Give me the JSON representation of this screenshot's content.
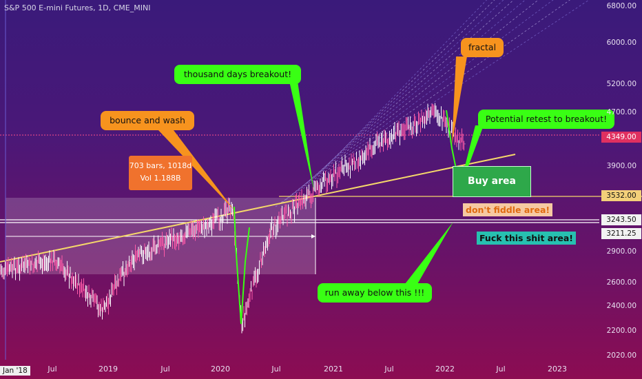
{
  "symbol_title": "S&P 500 E-mini Futures, 1D, CME_MINI",
  "y_axis": {
    "ticks": [
      "6800.00",
      "6000.00",
      "5200.00",
      "4700.00",
      "3900.00",
      "2900.00",
      "2600.00",
      "2400.00",
      "2200.00",
      "2020.00"
    ],
    "tags": {
      "last_price": "4349.00",
      "level_1": "3532.00",
      "level_2": "3243.50",
      "level_3": "3211.25"
    }
  },
  "x_axis": {
    "start_label": "Jan '18",
    "ticks": [
      "Jul",
      "2019",
      "Jul",
      "2020",
      "Jul",
      "2021",
      "Jul",
      "2022",
      "Jul",
      "2023"
    ]
  },
  "measure_box": {
    "line1": "703 bars, 1018d",
    "line2": "Vol 1.188B"
  },
  "annotations": {
    "bounce": "bounce and wash",
    "thousand": "thousand days breakout!",
    "fractal": "fractal",
    "retest": "Potential retest to breakout!",
    "buy_area": "Buy area",
    "fiddle": "don't fiddle area!",
    "fuck": "Fuck this shit area!",
    "runaway": "run away below this !!!"
  },
  "colors": {
    "orange": "#f7931e",
    "green": "#39ff14",
    "trendline": "#f5d86a",
    "red_tag": "#e03060",
    "teal": "#27c0b0"
  },
  "chart_data": {
    "type": "line",
    "title": "S&P 500 E-mini Futures, 1D, CME_MINI",
    "x": [
      "2018-01",
      "2018-07",
      "2018-12",
      "2019-03",
      "2019-07",
      "2019-12",
      "2020-02",
      "2020-03",
      "2020-06",
      "2020-09",
      "2020-12",
      "2021-03",
      "2021-06",
      "2021-09",
      "2021-12",
      "2022-01",
      "2022-03"
    ],
    "y": [
      2700,
      2800,
      2350,
      2800,
      3000,
      3200,
      3380,
      2250,
      3100,
      3400,
      3700,
      3950,
      4250,
      4450,
      4700,
      4450,
      4200
    ],
    "ylim": [
      2020,
      6800
    ],
    "levels": [
      4349.0,
      3532.0,
      3243.5,
      3211.25
    ],
    "y_scale": "log"
  }
}
